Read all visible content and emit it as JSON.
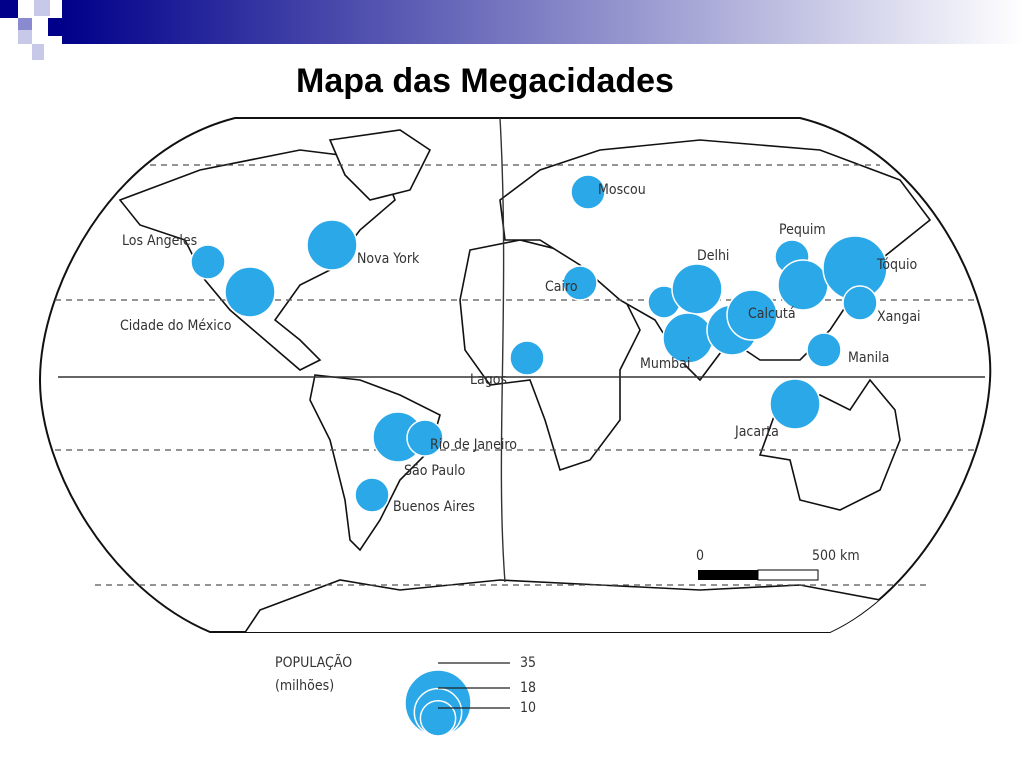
{
  "header": {
    "title": "Mapa das Megacidades"
  },
  "map": {
    "cities": [
      "Los Angeles",
      "Cidade do México",
      "Nova York",
      "Moscou",
      "Pequim",
      "Tóquio",
      "Delhi",
      "Cairo",
      "Xangai",
      "Calcutá",
      "Manila",
      "Mumbai",
      "Lagos",
      "Jacarta",
      "Rio de Janeiro",
      "São Paulo",
      "Buenos Aires"
    ],
    "scale": {
      "start": "0",
      "end": "500 km"
    }
  },
  "legend": {
    "title": "POPULAÇÃO",
    "unit": "(milhões)",
    "values": [
      35,
      18,
      10
    ]
  }
}
